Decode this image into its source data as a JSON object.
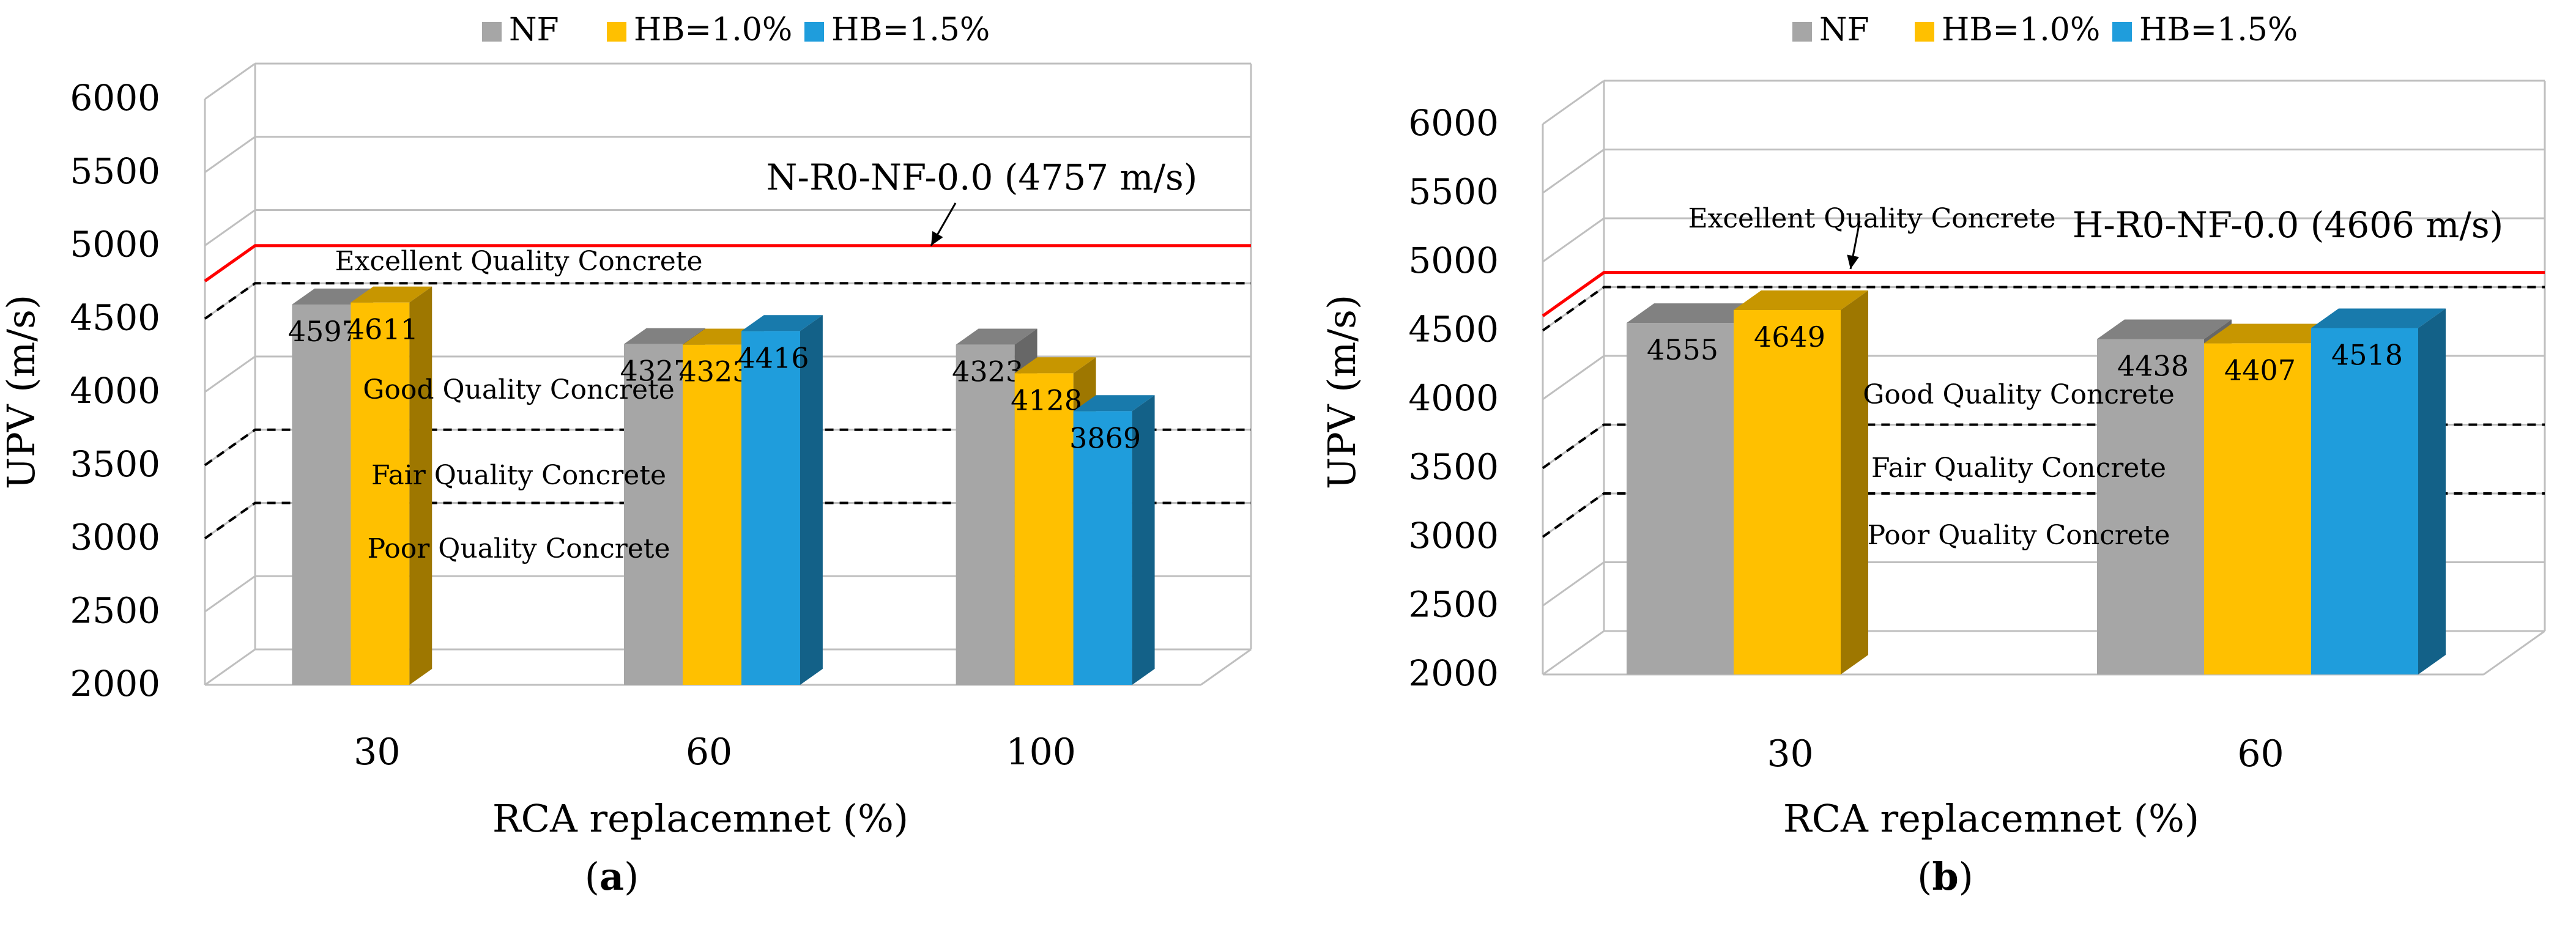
{
  "legend": [
    {
      "name": "NF",
      "color": "#a6a6a6"
    },
    {
      "name": "HB=1.0%",
      "color": "#ffc000"
    },
    {
      "name": "HB=1.5%",
      "color": "#1f9ddc"
    }
  ],
  "chart_data": [
    {
      "type": "bar",
      "panel_label": "a",
      "title": "",
      "xlabel": "RCA replacemnet (%)",
      "ylabel": "UPV (m/s)",
      "ylim": [
        2000,
        6000
      ],
      "yticks": [
        "2000",
        "2500",
        "3000",
        "3500",
        "4000",
        "4500",
        "5000",
        "5500",
        "6000"
      ],
      "categories": [
        "30",
        "60",
        "100"
      ],
      "series": [
        {
          "name": "NF",
          "values": [
            4597,
            4327,
            4323
          ],
          "labels": [
            "4597",
            "4327",
            "4323"
          ]
        },
        {
          "name": "HB=1.0%",
          "values": [
            4611,
            4323,
            4128
          ],
          "labels": [
            "4611",
            "4323",
            "4128"
          ]
        },
        {
          "name": "HB=1.5%",
          "values": [
            null,
            4416,
            3869
          ],
          "labels": [
            null,
            "4416",
            "3869"
          ]
        }
      ],
      "reference_line": {
        "label": "N-R0-NF-0.0 (4757 m/s)",
        "value": 4757
      },
      "quality_bands": [
        {
          "label": "Excellent Quality Concrete",
          "threshold": 4500
        },
        {
          "label": "Good Quality Concrete",
          "threshold": 3500
        },
        {
          "label": "Fair Quality Concrete",
          "threshold": 3000
        },
        {
          "label": "Poor Quality Concrete",
          "threshold": null
        }
      ]
    },
    {
      "type": "bar",
      "panel_label": "b",
      "title": "",
      "xlabel": "RCA replacemnet (%)",
      "ylabel": "UPV (m/s)",
      "ylim": [
        2000,
        6000
      ],
      "yticks": [
        "2000",
        "2500",
        "3000",
        "3500",
        "4000",
        "4500",
        "5000",
        "5500",
        "6000"
      ],
      "categories": [
        "30",
        "60"
      ],
      "series": [
        {
          "name": "NF",
          "values": [
            4555,
            4438
          ],
          "labels": [
            "4555",
            "4438"
          ]
        },
        {
          "name": "HB=1.0%",
          "values": [
            4649,
            4407
          ],
          "labels": [
            "4649",
            "4407"
          ]
        },
        {
          "name": "HB=1.5%",
          "values": [
            null,
            4518
          ],
          "labels": [
            null,
            "4518"
          ]
        }
      ],
      "reference_line": {
        "label": "H-R0-NF-0.0 (4606 m/s)",
        "value": 4606
      },
      "quality_bands": [
        {
          "label": "Excellent Quality Concrete",
          "threshold": 4500
        },
        {
          "label": "Good Quality Concrete",
          "threshold": 3500
        },
        {
          "label": "Fair Quality Concrete",
          "threshold": 3000
        },
        {
          "label": "Poor Quality Concrete",
          "threshold": null
        }
      ]
    }
  ]
}
